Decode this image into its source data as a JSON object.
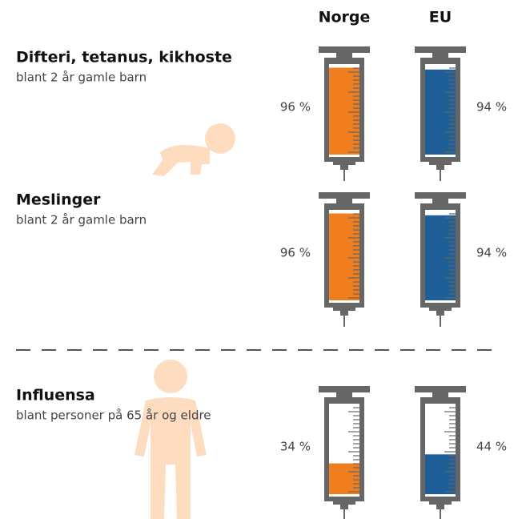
{
  "chart_data": {
    "type": "syringe",
    "categories": [
      "Difteri, tetanus, kikhoste",
      "Meslinger",
      "Influensa"
    ],
    "subtitles": [
      "blant 2 år gamle barn",
      "blant 2 år gamle barn",
      "blant personer på 65 år og eldre"
    ],
    "ylim": [
      0,
      100
    ],
    "series": [
      {
        "name": "Norge",
        "color": "#f07d1e",
        "values": [
          96,
          96,
          34
        ],
        "value_labels": [
          "96 %",
          "96 %",
          "34 %"
        ]
      },
      {
        "name": "EU",
        "color": "#1f5f97",
        "values": [
          94,
          94,
          44
        ],
        "value_labels": [
          "94 %",
          "94 %",
          "44 %"
        ]
      }
    ]
  }
}
